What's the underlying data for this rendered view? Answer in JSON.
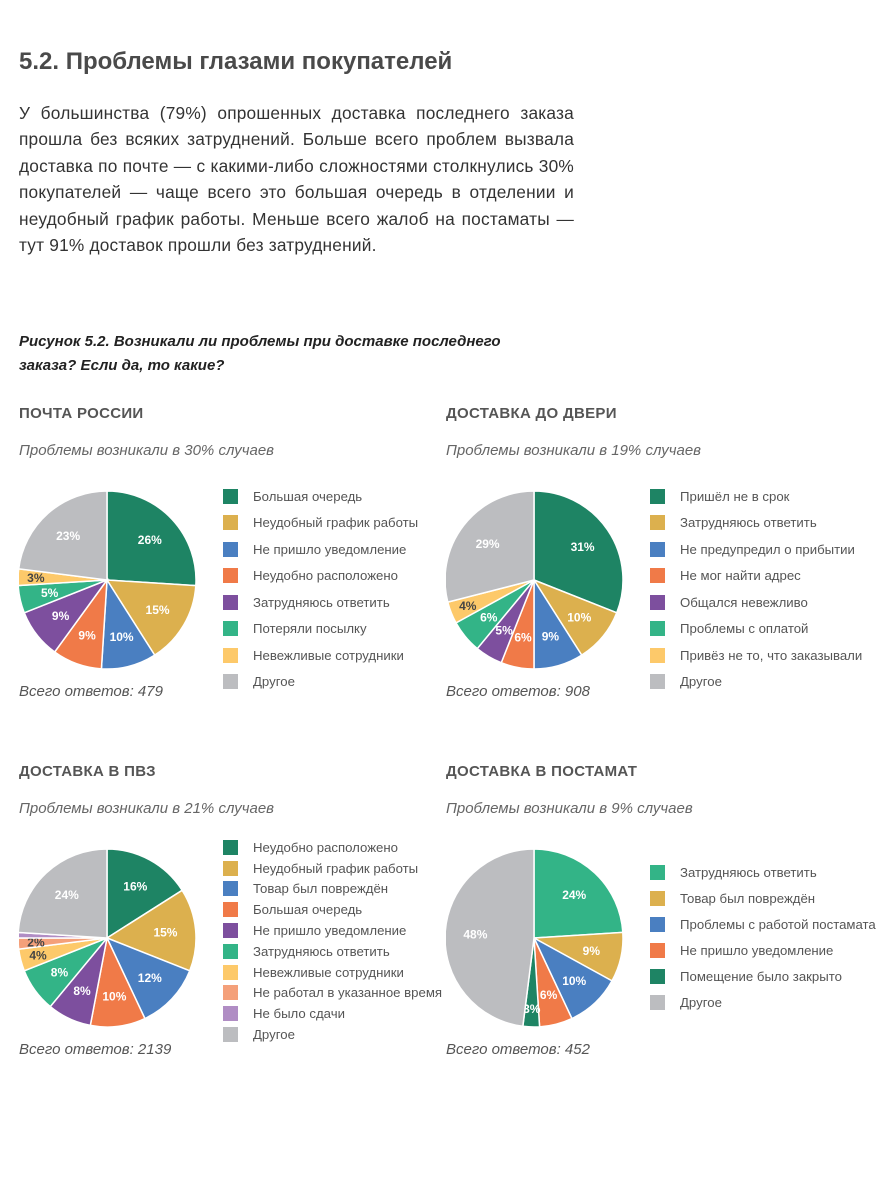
{
  "heading": "5.2. Проблемы глазами покупателей",
  "paragraph": "У большинства (79%) опрошенных доставка последнего заказа прошла без всяких затруднений. Больше всего проблем вызвала доставка по почте — с какими-либо сложностями столкнулись 30% покупателей — чаще всего это большая очередь в отделении и неудобный график работы. Меньше всего жалоб на постаматы — тут 91% доставок прошли без затруднений.",
  "figure_caption": "Рисунок 5.2. Возникали ли проблемы при доставке последнего заказа? Если да, то какие?",
  "chart_data": [
    {
      "type": "pie",
      "title": "ПОЧТА РОССИИ",
      "subtitle": "Проблемы возникали в 30% случаев",
      "total": "Всего ответов: 479",
      "slices": [
        {
          "label": "Большая очередь",
          "value": 26,
          "color": "#1e8464"
        },
        {
          "label": "Неудобный график работы",
          "value": 15,
          "color": "#dcb04e"
        },
        {
          "label": "Не пришло уведомление",
          "value": 10,
          "color": "#4a7fc1"
        },
        {
          "label": "Неудобно расположено",
          "value": 9,
          "color": "#f07a48"
        },
        {
          "label": "Затрудняюсь ответить",
          "value": 9,
          "color": "#7d4f9e"
        },
        {
          "label": "Потеряли посылку",
          "value": 5,
          "color": "#33b487"
        },
        {
          "label": "Невежливые сотрудники",
          "value": 3,
          "color": "#fdc96a"
        },
        {
          "label": "Другое",
          "value": 23,
          "color": "#bcbdc0"
        }
      ]
    },
    {
      "type": "pie",
      "title": "ДОСТАВКА ДО ДВЕРИ",
      "subtitle": "Проблемы возникали в 19% случаев",
      "total": "Всего ответов: 908",
      "slices": [
        {
          "label": "Пришёл не в срок",
          "value": 31,
          "color": "#1e8464"
        },
        {
          "label": "Затрудняюсь ответить",
          "value": 10,
          "color": "#dcb04e"
        },
        {
          "label": "Не предупредил о прибытии",
          "value": 9,
          "color": "#4a7fc1"
        },
        {
          "label": "Не мог найти адрес",
          "value": 6,
          "color": "#f07a48"
        },
        {
          "label": "Общался невежливо",
          "value": 5,
          "color": "#7d4f9e"
        },
        {
          "label": "Проблемы с оплатой",
          "value": 6,
          "color": "#33b487"
        },
        {
          "label": "Привёз не то, что заказывали",
          "value": 4,
          "color": "#fdc96a"
        },
        {
          "label": "Другое",
          "value": 29,
          "color": "#bcbdc0"
        }
      ]
    },
    {
      "type": "pie",
      "title": "ДОСТАВКА В ПВЗ",
      "subtitle": "Проблемы возникали в 21% случаев",
      "total": "Всего ответов: 2139",
      "slices": [
        {
          "label": "Неудобно расположено",
          "value": 16,
          "color": "#1e8464"
        },
        {
          "label": "Неудобный график работы",
          "value": 15,
          "color": "#dcb04e"
        },
        {
          "label": "Товар был повреждён",
          "value": 12,
          "color": "#4a7fc1"
        },
        {
          "label": "Большая очередь",
          "value": 10,
          "color": "#f07a48"
        },
        {
          "label": "Не пришло уведомление",
          "value": 8,
          "color": "#7d4f9e"
        },
        {
          "label": "Затрудняюсь ответить",
          "value": 8,
          "color": "#33b487"
        },
        {
          "label": "Невежливые сотрудники",
          "value": 4,
          "color": "#fdc96a"
        },
        {
          "label": "Не работал в указанное время",
          "value": 2,
          "color": "#f4a07a"
        },
        {
          "label": "Не было сдачи",
          "value": 1,
          "color": "#b08dc4",
          "hide_value": true
        },
        {
          "label": "Другое",
          "value": 24,
          "color": "#bcbdc0"
        }
      ]
    },
    {
      "type": "pie",
      "title": "ДОСТАВКА В ПОСТАМАТ",
      "subtitle": "Проблемы возникали в 9% случаев",
      "total": "Всего ответов: 452",
      "slices": [
        {
          "label": "Затрудняюсь ответить",
          "value": 24,
          "color": "#33b487"
        },
        {
          "label": "Товар был повреждён",
          "value": 9,
          "color": "#dcb04e"
        },
        {
          "label": "Проблемы с работой постамата",
          "value": 10,
          "color": "#4a7fc1"
        },
        {
          "label": "Не пришло уведомление",
          "value": 6,
          "color": "#f07a48"
        },
        {
          "label": "Помещение было закрыто",
          "value": 3,
          "color": "#1e8464"
        },
        {
          "label": "Другое",
          "value": 48,
          "color": "#bcbdc0"
        }
      ]
    }
  ]
}
